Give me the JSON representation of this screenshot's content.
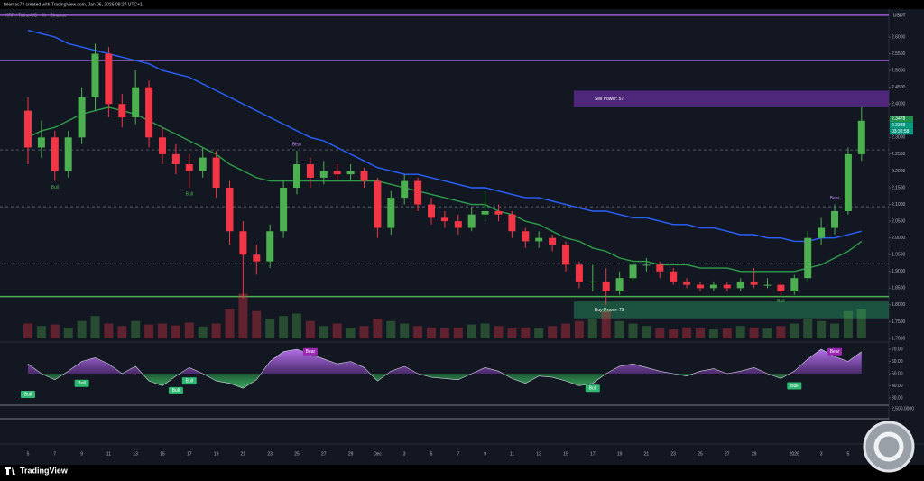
{
  "chart_data": {
    "type": "candlestick",
    "title": "telemac73 created with TradingView.com, Jan 06, 2026 09:27 UTC+1",
    "subtitle": "XRP / TetherUS · 4h · Binance",
    "currency": "USDT",
    "brand": "TradingView",
    "categories": [
      "5",
      null,
      "7",
      null,
      "9",
      null,
      "11",
      null,
      "13",
      null,
      "15",
      null,
      "17",
      null,
      "19",
      null,
      "21",
      null,
      "23",
      null,
      "25",
      null,
      "27",
      null,
      "29",
      null,
      "Dec",
      null,
      "3",
      null,
      "5",
      null,
      "7",
      null,
      "9",
      null,
      "11",
      null,
      "13",
      null,
      "15",
      null,
      "17",
      null,
      "19",
      null,
      "21",
      null,
      "23",
      null,
      "25",
      null,
      "27",
      null,
      "29",
      null,
      null,
      "2026",
      null,
      "3",
      null,
      "5",
      null
    ],
    "open": [
      2.38,
      2.27,
      2.3,
      2.2,
      2.3,
      2.42,
      2.55,
      2.4,
      2.36,
      2.45,
      2.3,
      2.25,
      2.22,
      2.2,
      2.24,
      2.15,
      2.02,
      1.95,
      1.93,
      2.02,
      2.15,
      2.22,
      2.18,
      2.2,
      2.19,
      2.2,
      2.17,
      2.03,
      2.12,
      2.17,
      2.1,
      2.06,
      2.05,
      2.03,
      2.07,
      2.08,
      2.07,
      2.02,
      1.99,
      2.0,
      1.98,
      1.92,
      1.87,
      1.87,
      1.84,
      1.88,
      1.92,
      1.92,
      1.9,
      1.87,
      1.86,
      1.85,
      1.86,
      1.85,
      1.87,
      1.86,
      1.86,
      1.84,
      1.88,
      2.0,
      2.03,
      2.08,
      2.25
    ],
    "high": [
      2.42,
      2.35,
      2.32,
      2.32,
      2.45,
      2.58,
      2.57,
      2.43,
      2.5,
      2.47,
      2.33,
      2.28,
      2.25,
      2.27,
      2.26,
      2.17,
      2.05,
      1.98,
      2.04,
      2.17,
      2.26,
      2.24,
      2.23,
      2.22,
      2.22,
      2.21,
      2.18,
      2.14,
      2.19,
      2.18,
      2.12,
      2.08,
      2.07,
      2.09,
      2.14,
      2.1,
      2.08,
      2.03,
      2.02,
      2.01,
      1.99,
      1.93,
      1.92,
      1.91,
      1.9,
      1.93,
      1.94,
      1.93,
      1.91,
      1.88,
      1.87,
      1.87,
      1.87,
      1.88,
      1.91,
      1.88,
      1.87,
      1.89,
      2.02,
      2.06,
      2.1,
      2.27,
      2.39
    ],
    "low": [
      2.22,
      2.24,
      2.17,
      2.18,
      2.28,
      2.38,
      2.36,
      2.33,
      2.34,
      2.27,
      2.22,
      2.19,
      2.15,
      2.18,
      2.12,
      1.98,
      1.82,
      1.89,
      1.91,
      2.0,
      2.13,
      2.15,
      2.16,
      2.17,
      2.17,
      2.15,
      2.0,
      2.01,
      2.1,
      2.08,
      2.04,
      2.03,
      2.01,
      2.02,
      2.05,
      2.05,
      2.0,
      1.97,
      1.97,
      1.96,
      1.9,
      1.85,
      1.84,
      1.8,
      1.83,
      1.87,
      1.9,
      1.88,
      1.86,
      1.85,
      1.84,
      1.84,
      1.84,
      1.84,
      1.85,
      1.85,
      1.83,
      1.83,
      1.87,
      1.98,
      2.01,
      2.07,
      2.23
    ],
    "close": [
      2.27,
      2.3,
      2.2,
      2.3,
      2.42,
      2.55,
      2.4,
      2.36,
      2.45,
      2.3,
      2.25,
      2.22,
      2.2,
      2.24,
      2.15,
      2.02,
      1.95,
      1.93,
      2.02,
      2.15,
      2.22,
      2.18,
      2.2,
      2.19,
      2.2,
      2.17,
      2.03,
      2.12,
      2.17,
      2.1,
      2.06,
      2.05,
      2.03,
      2.07,
      2.08,
      2.07,
      2.02,
      1.99,
      2.0,
      1.98,
      1.92,
      1.87,
      1.87,
      1.84,
      1.88,
      1.92,
      1.92,
      1.9,
      1.87,
      1.86,
      1.85,
      1.86,
      1.85,
      1.87,
      1.86,
      1.86,
      1.84,
      1.88,
      2.0,
      2.03,
      2.08,
      2.25,
      2.35
    ],
    "up_color": "#4caf50",
    "down_color": "#f23645",
    "lines": [
      {
        "color": "#2962ff",
        "values": [
          2.62,
          2.61,
          2.6,
          2.58,
          2.57,
          2.56,
          2.55,
          2.54,
          2.53,
          2.52,
          2.5,
          2.49,
          2.48,
          2.46,
          2.44,
          2.42,
          2.4,
          2.38,
          2.36,
          2.34,
          2.32,
          2.3,
          2.29,
          2.27,
          2.25,
          2.23,
          2.21,
          2.2,
          2.19,
          2.19,
          2.18,
          2.17,
          2.16,
          2.15,
          2.15,
          2.14,
          2.13,
          2.12,
          2.12,
          2.11,
          2.1,
          2.09,
          2.08,
          2.08,
          2.07,
          2.06,
          2.06,
          2.05,
          2.04,
          2.04,
          2.03,
          2.03,
          2.02,
          2.01,
          2.01,
          2.0,
          2.0,
          1.99,
          1.99,
          2.0,
          2.0,
          2.01,
          2.02
        ]
      },
      {
        "color": "#2e9d4a",
        "values": [
          2.3,
          2.32,
          2.33,
          2.35,
          2.37,
          2.38,
          2.39,
          2.38,
          2.37,
          2.35,
          2.33,
          2.31,
          2.29,
          2.27,
          2.25,
          2.22,
          2.2,
          2.18,
          2.17,
          2.17,
          2.17,
          2.17,
          2.17,
          2.17,
          2.17,
          2.17,
          2.17,
          2.16,
          2.15,
          2.14,
          2.13,
          2.12,
          2.11,
          2.1,
          2.1,
          2.08,
          2.07,
          2.05,
          2.04,
          2.02,
          2.0,
          1.99,
          1.97,
          1.96,
          1.94,
          1.93,
          1.93,
          1.92,
          1.92,
          1.92,
          1.91,
          1.91,
          1.91,
          1.9,
          1.9,
          1.9,
          1.9,
          1.9,
          1.91,
          1.92,
          1.94,
          1.96,
          1.99
        ]
      }
    ],
    "levels": [
      {
        "value": 2.665,
        "color": "#9c5bd6",
        "dashed": false
      },
      {
        "value": 2.53,
        "color": "#9c5bd6",
        "dashed": false
      },
      {
        "value": 2.263,
        "color": "#787b86",
        "dashed": true
      },
      {
        "value": 2.093,
        "color": "#787b86",
        "dashed": true
      },
      {
        "value": 1.923,
        "color": "#787b86",
        "dashed": true
      },
      {
        "value": 1.825,
        "color": "#4caf50",
        "dashed": false
      }
    ],
    "zones": [
      {
        "text": "Sell Power: 57",
        "from": 2.39,
        "to": 2.44,
        "start": 41,
        "color": "#5b2a8a"
      },
      {
        "text": "Buy Power: 73",
        "from": 1.76,
        "to": 1.81,
        "start": 41,
        "color": "#1f5e45"
      }
    ],
    "annotations": [
      {
        "text": "Bull",
        "x": 2,
        "y": 2.17
      },
      {
        "text": "Bull",
        "x": 12,
        "y": 2.15
      },
      {
        "text": "Bear",
        "x": 20,
        "y": 2.26
      },
      {
        "text": "Bull",
        "x": 43,
        "y": 1.8
      },
      {
        "text": "Bull",
        "x": 56,
        "y": 1.83
      },
      {
        "text": "Bear",
        "x": 60,
        "y": 2.1
      }
    ],
    "price_labels": [
      "2.3478",
      "2.3388",
      "03:32:58"
    ],
    "ylim": [
      1.7,
      2.6
    ],
    "yticks": [
      {
        "value": 2.6,
        "label": "2.6000"
      },
      {
        "value": 2.55,
        "label": "2.5500"
      },
      {
        "value": 2.5,
        "label": "2.5000"
      },
      {
        "value": 2.45,
        "label": "2.4500"
      },
      {
        "value": 2.4,
        "label": "2.4000"
      },
      {
        "value": 2.35,
        "label": "2.3500"
      },
      {
        "value": 2.3,
        "label": "2.3000"
      },
      {
        "value": 2.25,
        "label": "2.2500"
      },
      {
        "value": 2.2,
        "label": "2.2000"
      },
      {
        "value": 2.15,
        "label": "2.1500"
      },
      {
        "value": 2.1,
        "label": "2.1000"
      },
      {
        "value": 2.05,
        "label": "2.0500"
      },
      {
        "value": 2.0,
        "label": "2.0000"
      },
      {
        "value": 1.95,
        "label": "1.9500"
      },
      {
        "value": 1.9,
        "label": "1.9000"
      },
      {
        "value": 1.85,
        "label": "1.8500"
      },
      {
        "value": 1.8,
        "label": "1.8000"
      },
      {
        "value": 1.75,
        "label": "1.7500"
      },
      {
        "value": 1.7,
        "label": "1.7000"
      }
    ],
    "volume": [
      30,
      25,
      28,
      22,
      35,
      45,
      30,
      25,
      35,
      28,
      30,
      26,
      32,
      24,
      30,
      60,
      90,
      55,
      40,
      45,
      50,
      35,
      25,
      30,
      22,
      25,
      40,
      35,
      30,
      25,
      22,
      20,
      22,
      28,
      30,
      25,
      20,
      22,
      20,
      25,
      30,
      35,
      40,
      55,
      35,
      30,
      25,
      20,
      18,
      22,
      20,
      18,
      20,
      25,
      22,
      20,
      25,
      30,
      40,
      35,
      30,
      55,
      60
    ],
    "vlim": [
      0,
      100
    ],
    "oscillator": [
      58,
      50,
      45,
      52,
      60,
      63,
      58,
      50,
      56,
      44,
      40,
      48,
      55,
      50,
      44,
      42,
      38,
      45,
      60,
      68,
      70,
      66,
      62,
      58,
      60,
      55,
      44,
      52,
      56,
      50,
      47,
      46,
      45,
      50,
      55,
      52,
      46,
      42,
      48,
      47,
      44,
      40,
      42,
      50,
      56,
      58,
      55,
      52,
      50,
      48,
      52,
      54,
      50,
      52,
      55,
      50,
      46,
      52,
      62,
      70,
      64,
      60,
      68
    ],
    "osc_lim": [
      30,
      70
    ],
    "osc_ticks": [
      {
        "value": 70,
        "label": "70.00"
      },
      {
        "value": 60,
        "label": "60.00"
      },
      {
        "value": 50,
        "label": "50.00"
      },
      {
        "value": 40,
        "label": "40.00"
      },
      {
        "value": 30,
        "label": "30.00"
      }
    ],
    "osc_annotations": [
      {
        "text": "Bull",
        "x": 0,
        "y": 33
      },
      {
        "text": "Bull",
        "x": 4,
        "y": 42
      },
      {
        "text": "Bull",
        "x": 11,
        "y": 36
      },
      {
        "text": "Bull",
        "x": 12,
        "y": 44
      },
      {
        "text": "Bear",
        "x": 21,
        "y": 68
      },
      {
        "text": "Bull",
        "x": 42,
        "y": 38
      },
      {
        "text": "Bull",
        "x": 57,
        "y": 40
      },
      {
        "text": "Bear",
        "x": 60,
        "y": 68
      }
    ],
    "lower_pane_label": "2,500.0000"
  }
}
